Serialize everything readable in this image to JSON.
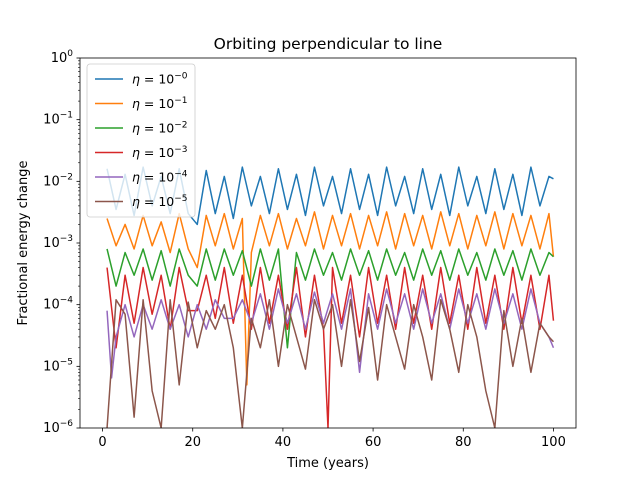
{
  "chart_data": {
    "type": "line",
    "title": "Orbiting perpendicular to line",
    "xlabel": "Time (years)",
    "ylabel": "Fractional energy change",
    "xlim": [
      -5,
      105
    ],
    "ylim": [
      1e-06,
      1
    ],
    "yscale": "log",
    "x_ticks": [
      0,
      20,
      40,
      60,
      80,
      100
    ],
    "x_tick_labels": [
      "0",
      "20",
      "40",
      "60",
      "80",
      "100"
    ],
    "y_ticks": [
      1e-06,
      1e-05,
      0.0001,
      0.001,
      0.01,
      0.1,
      1
    ],
    "y_tick_labels": [
      {
        "base": "10",
        "exp": "−6"
      },
      {
        "base": "10",
        "exp": "−5"
      },
      {
        "base": "10",
        "exp": "−4"
      },
      {
        "base": "10",
        "exp": "−3"
      },
      {
        "base": "10",
        "exp": "−2"
      },
      {
        "base": "10",
        "exp": "−1"
      },
      {
        "base": "10",
        "exp": "0"
      }
    ],
    "legend_position": "upper-left",
    "series": [
      {
        "name": "η = 10^−0",
        "legend_base": "η = 10",
        "legend_exp": "−0",
        "color": "#1f77b4",
        "x": [
          1,
          3,
          5,
          7,
          9,
          11,
          13,
          15,
          17,
          19,
          21,
          23,
          25,
          27,
          29,
          31,
          33,
          35,
          37,
          39,
          41,
          43,
          45,
          47,
          49,
          51,
          53,
          55,
          57,
          59,
          61,
          63,
          65,
          67,
          69,
          71,
          73,
          75,
          77,
          79,
          81,
          83,
          85,
          87,
          89,
          91,
          93,
          95,
          97,
          99,
          100
        ],
        "y": [
          0.016,
          0.0035,
          0.013,
          0.0028,
          0.017,
          0.004,
          0.012,
          0.003,
          0.016,
          0.003,
          0.002,
          0.015,
          0.003,
          0.012,
          0.0025,
          0.017,
          0.004,
          0.012,
          0.003,
          0.016,
          0.0035,
          0.013,
          0.0028,
          0.017,
          0.004,
          0.012,
          0.003,
          0.016,
          0.0035,
          0.013,
          0.0028,
          0.017,
          0.004,
          0.012,
          0.003,
          0.016,
          0.0035,
          0.013,
          0.0028,
          0.017,
          0.004,
          0.012,
          0.003,
          0.016,
          0.0035,
          0.013,
          0.0028,
          0.017,
          0.004,
          0.012,
          0.011
        ]
      },
      {
        "name": "η = 10^−1",
        "legend_base": "η = 10",
        "legend_exp": "−1",
        "color": "#ff7f0e",
        "x": [
          1,
          3,
          5,
          7,
          9,
          11,
          13,
          15,
          17,
          19,
          21,
          23,
          25,
          27,
          29,
          31,
          32,
          33,
          35,
          37,
          39,
          41,
          43,
          45,
          47,
          49,
          51,
          53,
          55,
          57,
          59,
          61,
          63,
          65,
          67,
          69,
          71,
          73,
          75,
          77,
          79,
          81,
          83,
          85,
          87,
          89,
          91,
          93,
          95,
          97,
          99,
          100
        ],
        "y": [
          0.0025,
          0.0009,
          0.002,
          0.0008,
          0.0028,
          0.0009,
          0.0022,
          0.0007,
          0.003,
          0.0008,
          0.0004,
          0.0028,
          0.0009,
          0.003,
          0.0008,
          0.0025,
          5e-06,
          0.0007,
          0.0028,
          0.0009,
          0.003,
          0.0008,
          0.0025,
          0.0009,
          0.0032,
          0.0008,
          0.0028,
          0.0009,
          0.003,
          0.0008,
          0.0028,
          0.0009,
          0.0032,
          0.0008,
          0.003,
          0.0009,
          0.0028,
          0.0008,
          0.0032,
          0.0009,
          0.003,
          0.0008,
          0.0028,
          0.0009,
          0.0032,
          0.0008,
          0.003,
          0.0009,
          0.0028,
          0.0008,
          0.003,
          0.0006
        ]
      },
      {
        "name": "η = 10^−2",
        "legend_base": "η = 10",
        "legend_exp": "−2",
        "color": "#2ca02c",
        "x": [
          1,
          3,
          5,
          7,
          9,
          11,
          13,
          15,
          17,
          19,
          21,
          23,
          25,
          27,
          29,
          31,
          33,
          35,
          37,
          39,
          41,
          43,
          45,
          47,
          49,
          51,
          53,
          55,
          57,
          59,
          61,
          63,
          65,
          67,
          69,
          71,
          73,
          75,
          77,
          79,
          81,
          83,
          85,
          87,
          89,
          91,
          93,
          95,
          97,
          99,
          100
        ],
        "y": [
          0.0008,
          0.0002,
          0.0007,
          0.0003,
          0.0008,
          0.00025,
          0.00075,
          0.0002,
          0.0008,
          0.0003,
          0.0002,
          0.0008,
          0.00025,
          0.0008,
          0.0003,
          0.00075,
          0.0002,
          0.0008,
          0.00025,
          0.0008,
          2e-05,
          0.0007,
          0.00025,
          0.0008,
          0.0003,
          0.0007,
          0.00025,
          0.0008,
          0.0003,
          0.00075,
          0.00025,
          0.0008,
          0.0003,
          0.0007,
          0.00025,
          0.0008,
          0.0003,
          0.00075,
          0.00025,
          0.0008,
          0.0003,
          0.0007,
          0.00025,
          0.0008,
          0.0003,
          0.00075,
          0.00025,
          0.0008,
          0.0003,
          0.0007,
          0.0006
        ]
      },
      {
        "name": "η = 10^−3",
        "legend_base": "η = 10",
        "legend_exp": "−3",
        "color": "#d62728",
        "x": [
          1,
          3,
          5,
          7,
          9,
          11,
          13,
          15,
          17,
          19,
          21,
          23,
          25,
          27,
          29,
          31,
          33,
          35,
          37,
          39,
          41,
          43,
          45,
          47,
          49,
          50,
          51,
          53,
          55,
          57,
          59,
          61,
          63,
          65,
          67,
          69,
          71,
          73,
          75,
          77,
          79,
          81,
          83,
          85,
          87,
          89,
          91,
          93,
          95,
          97,
          99,
          100
        ],
        "y": [
          0.0004,
          2e-05,
          0.0003,
          5e-05,
          0.0004,
          7e-05,
          0.0003,
          4e-05,
          0.0004,
          8e-05,
          8e-05,
          0.0003,
          6e-05,
          0.0004,
          5e-05,
          0.0003,
          4e-05,
          0.0004,
          5e-05,
          0.0003,
          4e-05,
          0.0004,
          3e-05,
          0.0003,
          4e-05,
          1e-06,
          0.0004,
          5e-05,
          0.0003,
          3e-05,
          0.0004,
          5e-05,
          0.0003,
          4e-05,
          0.0004,
          5e-05,
          0.0003,
          4e-05,
          0.0004,
          5e-05,
          0.0003,
          4e-05,
          0.0004,
          5e-05,
          0.0003,
          4e-05,
          0.0004,
          5e-05,
          0.0003,
          4e-05,
          0.0003,
          5.5e-05
        ]
      },
      {
        "name": "η = 10^−4",
        "legend_base": "η = 10",
        "legend_exp": "−4",
        "color": "#9467bd",
        "x": [
          1,
          2,
          3,
          5,
          7,
          9,
          11,
          13,
          15,
          17,
          19,
          21,
          23,
          25,
          27,
          29,
          31,
          33,
          35,
          37,
          39,
          41,
          43,
          45,
          47,
          49,
          51,
          53,
          55,
          57,
          59,
          61,
          63,
          65,
          67,
          69,
          71,
          73,
          75,
          77,
          79,
          81,
          83,
          85,
          87,
          89,
          91,
          93,
          95,
          97,
          99,
          100
        ],
        "y": [
          8e-05,
          6.5e-06,
          3e-05,
          0.0001,
          3e-05,
          0.0001,
          4e-05,
          0.00012,
          4e-05,
          0.0001,
          3e-05,
          0.0001,
          4e-05,
          0.00012,
          6e-05,
          6e-05,
          0.00012,
          5e-05,
          0.00015,
          4e-05,
          0.00018,
          5e-05,
          0.00015,
          4e-05,
          0.00016,
          5e-05,
          0.00015,
          4e-05,
          0.00018,
          8e-06,
          0.00015,
          4e-05,
          0.00018,
          5e-05,
          0.00015,
          4e-05,
          0.00018,
          5e-05,
          0.00015,
          4e-05,
          0.00018,
          5e-05,
          0.00015,
          4e-05,
          0.00018,
          5e-05,
          0.00015,
          4e-05,
          0.00018,
          5e-05,
          3e-05,
          2e-05
        ]
      },
      {
        "name": "η = 10^−5",
        "legend_base": "η = 10",
        "legend_exp": "−5",
        "color": "#8c564b",
        "x": [
          1,
          3,
          5,
          7,
          9,
          11,
          13,
          15,
          17,
          19,
          21,
          23,
          25,
          27,
          29,
          31,
          33,
          35,
          37,
          39,
          41,
          43,
          45,
          47,
          49,
          51,
          53,
          55,
          57,
          59,
          61,
          63,
          65,
          67,
          69,
          71,
          73,
          75,
          77,
          79,
          81,
          83,
          85,
          87,
          89,
          91,
          93,
          95,
          97,
          99,
          100
        ],
        "y": [
          1e-06,
          0.00012,
          7e-05,
          1.5e-06,
          0.00012,
          4e-06,
          1e-06,
          0.00012,
          5e-06,
          0.00011,
          2e-05,
          8e-05,
          4e-05,
          0.0001,
          2e-05,
          1e-06,
          6e-05,
          2e-05,
          0.00012,
          1e-05,
          0.0001,
          3e-05,
          9e-06,
          0.00012,
          4e-05,
          0.0001,
          1e-05,
          0.00012,
          1.2e-05,
          9e-05,
          6e-06,
          0.0001,
          3e-05,
          9e-06,
          0.0001,
          3e-05,
          6e-06,
          0.00012,
          4e-05,
          8e-06,
          0.0001,
          3e-05,
          4e-06,
          1e-06,
          8e-05,
          1e-05,
          6e-05,
          8e-06,
          5e-05,
          3e-05,
          2.5e-05
        ]
      }
    ]
  }
}
